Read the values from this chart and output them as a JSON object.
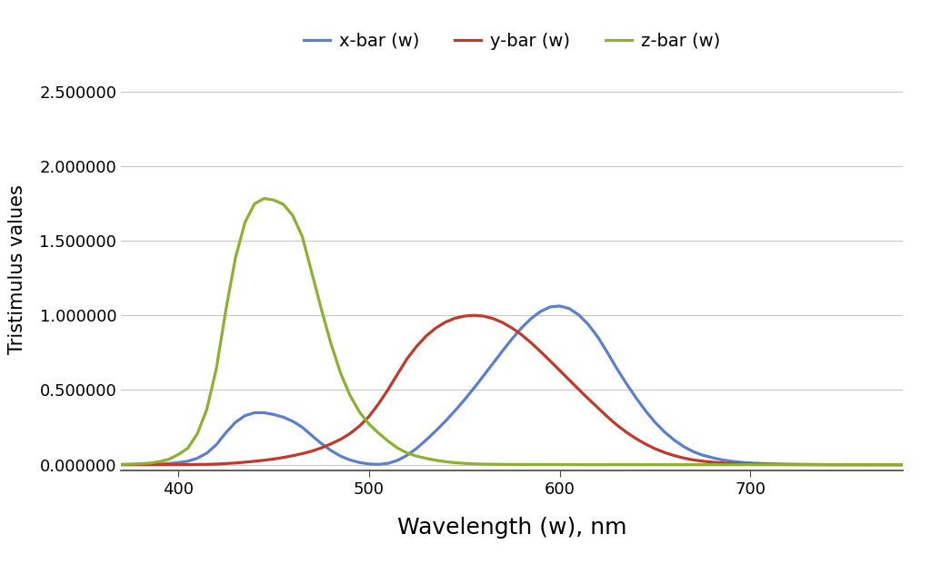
{
  "title": "",
  "xlabel": "Wavelength (w), nm",
  "ylabel": "Tristimulus values",
  "xlim": [
    370,
    780
  ],
  "ylim": [
    -0.04,
    2.65
  ],
  "yticks": [
    0.0,
    0.5,
    1.0,
    1.5,
    2.0,
    2.5
  ],
  "ytick_labels": [
    "0.000000",
    "0.500000",
    "1.000000",
    "1.500000",
    "2.000000",
    "2.500000"
  ],
  "xticks": [
    400,
    500,
    600,
    700
  ],
  "x_color": "#5b7fcc",
  "y_color": "#c0392b",
  "z_color": "#8db030",
  "line_width": 2.3,
  "legend_labels": [
    "x-bar (w)",
    "y-bar (w)",
    "z-bar (w)"
  ],
  "xlabel_fontsize": 18,
  "ylabel_fontsize": 15,
  "tick_fontsize": 13,
  "legend_fontsize": 14,
  "background_color": "#ffffff",
  "grid_color": "#c8c8c8"
}
